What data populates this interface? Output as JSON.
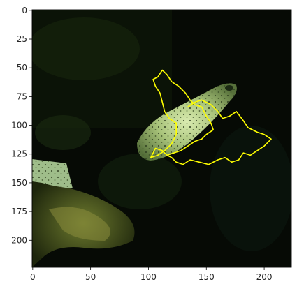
{
  "figure": {
    "type": "image-with-overlay",
    "image_width": 224,
    "image_height": 224,
    "overlay_color": "#ffff00",
    "x_ticks": [
      "0",
      "50",
      "100",
      "150",
      "200"
    ],
    "y_ticks": [
      "0",
      "25",
      "50",
      "75",
      "100",
      "125",
      "150",
      "175",
      "200"
    ]
  },
  "chart_data": {
    "type": "image",
    "xlim": [
      -0.5,
      223.5
    ],
    "ylim": [
      223.5,
      -0.5
    ],
    "x_tick_values": [
      0,
      50,
      100,
      150,
      200
    ],
    "y_tick_values": [
      0,
      25,
      50,
      75,
      100,
      125,
      150,
      175,
      200
    ],
    "grid": false,
    "legend": "none",
    "overlay_segments": [
      {
        "name": "",
        "color": "#ffff00",
        "points": [
          [
            108,
            58
          ],
          [
            112,
            52
          ],
          [
            116,
            56
          ],
          [
            120,
            62
          ],
          [
            126,
            66
          ],
          [
            132,
            72
          ],
          [
            136,
            78
          ],
          [
            140,
            82
          ],
          [
            146,
            84
          ],
          [
            150,
            92
          ],
          [
            154,
            98
          ],
          [
            156,
            104
          ],
          [
            150,
            108
          ],
          [
            146,
            112
          ],
          [
            140,
            114
          ],
          [
            134,
            118
          ],
          [
            128,
            122
          ],
          [
            122,
            124
          ],
          [
            116,
            126
          ],
          [
            112,
            122
          ],
          [
            106,
            120
          ],
          [
            104,
            124
          ],
          [
            102,
            128
          ],
          [
            108,
            126
          ],
          [
            114,
            122
          ],
          [
            120,
            116
          ],
          [
            124,
            108
          ],
          [
            124,
            98
          ],
          [
            118,
            94
          ],
          [
            114,
            88
          ],
          [
            112,
            80
          ],
          [
            110,
            72
          ],
          [
            106,
            66
          ],
          [
            104,
            60
          ],
          [
            108,
            58
          ]
        ]
      },
      {
        "name": "",
        "color": "#ffff00",
        "points": [
          [
            134,
            84
          ],
          [
            140,
            80
          ],
          [
            146,
            78
          ],
          [
            154,
            82
          ],
          [
            160,
            88
          ],
          [
            164,
            94
          ],
          [
            170,
            92
          ],
          [
            176,
            88
          ],
          [
            182,
            96
          ],
          [
            186,
            102
          ],
          [
            194,
            106
          ],
          [
            200,
            108
          ],
          [
            206,
            112
          ],
          [
            200,
            118
          ],
          [
            194,
            122
          ],
          [
            188,
            126
          ],
          [
            182,
            124
          ],
          [
            178,
            130
          ],
          [
            172,
            132
          ],
          [
            166,
            128
          ],
          [
            160,
            130
          ],
          [
            152,
            134
          ],
          [
            144,
            132
          ],
          [
            136,
            130
          ],
          [
            130,
            134
          ],
          [
            124,
            132
          ],
          [
            120,
            128
          ],
          [
            116,
            126
          ]
        ]
      }
    ]
  }
}
